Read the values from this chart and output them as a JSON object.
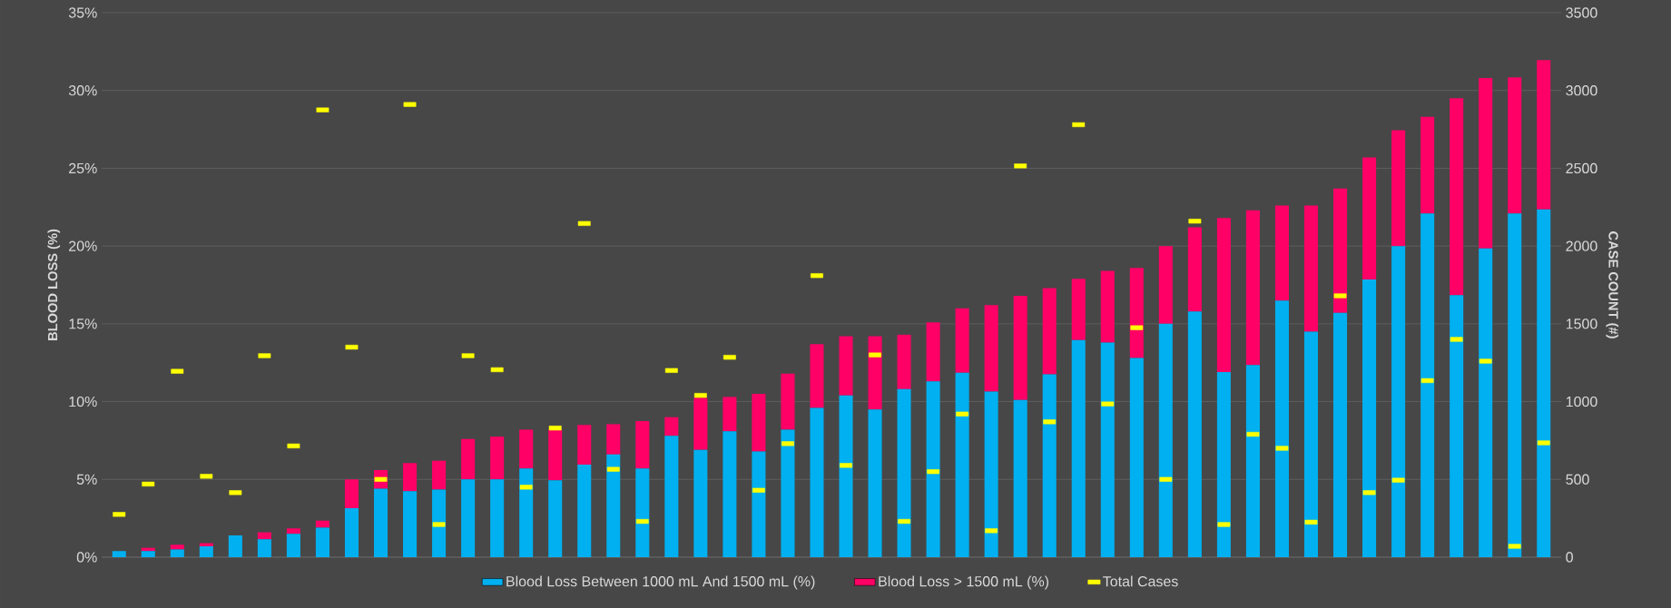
{
  "chart_data": {
    "type": "bar",
    "stacked": true,
    "ylabel": "BLOOD LOSS (%)",
    "y2label": "CASE COUNT (#)",
    "categories": [
      null,
      null,
      null,
      null,
      null,
      null,
      null,
      null,
      null,
      null,
      null,
      null,
      null,
      null,
      null,
      null,
      null,
      null,
      null,
      null,
      null,
      null,
      null,
      null,
      null,
      null,
      null,
      null,
      null,
      null,
      null,
      null,
      null,
      null,
      null,
      null,
      null,
      null,
      null,
      null,
      null,
      null,
      null,
      null,
      null,
      null,
      null,
      null,
      null,
      null
    ],
    "ylim": [
      0,
      35
    ],
    "yticks": [
      {
        "value": 0,
        "label": "0%"
      },
      {
        "value": 5,
        "label": "5%"
      },
      {
        "value": 10,
        "label": "10%"
      },
      {
        "value": 15,
        "label": "15%"
      },
      {
        "value": 20,
        "label": "20%"
      },
      {
        "value": 25,
        "label": "25%"
      },
      {
        "value": 30,
        "label": "30%"
      },
      {
        "value": 35,
        "label": "35%"
      }
    ],
    "y2lim": [
      0,
      3500
    ],
    "y2ticks": [
      0,
      500,
      1000,
      1500,
      2000,
      2500,
      3000,
      3500
    ],
    "grid": "y",
    "legend": "bottom",
    "tick_labels": "y",
    "series": [
      {
        "name": "Blood Loss Between 1000 mL And 1500 mL (%)",
        "color": "#00b0f0",
        "values": [
          0.4,
          0.4,
          0.5,
          0.7,
          1.4,
          1.15,
          1.5,
          1.9,
          3.15,
          4.4,
          4.25,
          4.35,
          5.0,
          5.0,
          5.7,
          4.95,
          5.95,
          6.6,
          5.7,
          7.8,
          6.9,
          8.1,
          6.8,
          8.2,
          9.6,
          10.4,
          9.5,
          10.8,
          11.3,
          11.85,
          10.65,
          10.1,
          11.75,
          13.95,
          13.8,
          12.8,
          15.0,
          15.8,
          11.9,
          12.35,
          16.5,
          14.5,
          15.7,
          17.85,
          20.0,
          22.1,
          16.85,
          19.85,
          22.1,
          22.35
        ]
      },
      {
        "name": "Blood Loss > 1500 mL (%)",
        "color": "#ff0066",
        "values": [
          0,
          0.2,
          0.3,
          0.2,
          0,
          0.45,
          0.35,
          0.45,
          1.85,
          1.2,
          1.8,
          1.85,
          2.6,
          2.75,
          2.5,
          3.25,
          2.55,
          1.95,
          3.05,
          1.2,
          3.35,
          2.2,
          3.7,
          3.6,
          4.1,
          3.8,
          4.7,
          3.5,
          3.8,
          4.15,
          5.55,
          6.7,
          5.55,
          3.95,
          4.6,
          5.8,
          5.0,
          5.4,
          9.9,
          9.95,
          6.1,
          8.1,
          8.0,
          7.85,
          7.45,
          6.2,
          12.65,
          10.95,
          8.75,
          9.6
        ]
      },
      {
        "name": "Total Cases",
        "type": "scatter",
        "axis": "y2",
        "marker": "square",
        "color": "#ffff00",
        "values": [
          275,
          470,
          1195,
          520,
          415,
          1295,
          715,
          2875,
          1350,
          500,
          2910,
          210,
          1295,
          1205,
          450,
          830,
          2145,
          565,
          230,
          1200,
          1040,
          1285,
          430,
          730,
          1810,
          590,
          1300,
          230,
          550,
          920,
          170,
          2515,
          870,
          2780,
          985,
          1475,
          500,
          2160,
          210,
          790,
          700,
          225,
          1680,
          415,
          495,
          1135,
          1400,
          1260,
          70,
          735
        ]
      }
    ]
  }
}
